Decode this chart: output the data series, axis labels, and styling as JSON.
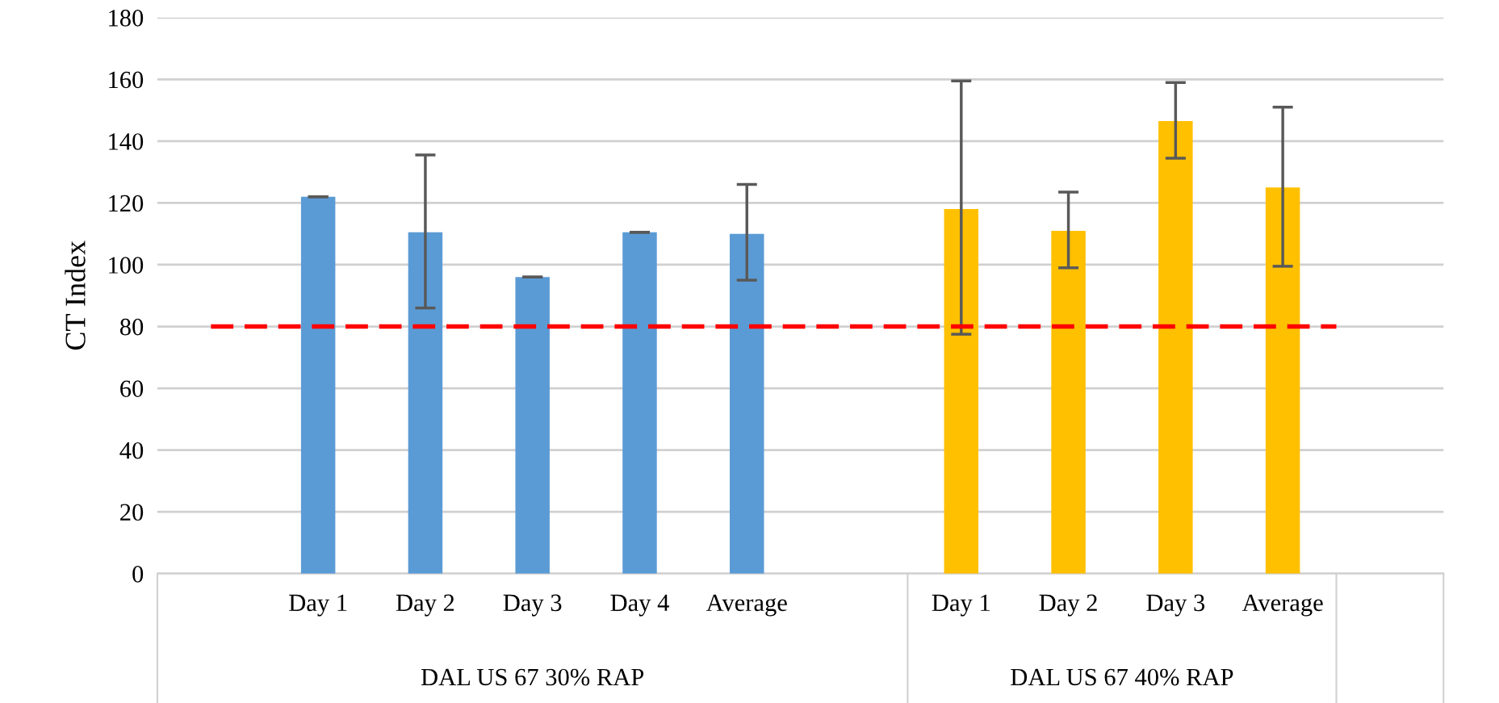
{
  "chart_data": {
    "type": "bar",
    "ylabel": "CT Index",
    "categories": [
      null,
      "Day 1",
      "Day 2",
      "Day 3",
      "Day 4",
      "Average",
      null,
      "Day 1",
      "Day 2",
      "Day 3",
      "Average",
      null
    ],
    "values": [
      null,
      122,
      110.5,
      96,
      110.5,
      110,
      null,
      118,
      111,
      146.5,
      125,
      null
    ],
    "colors": [
      null,
      "#5b9bd5",
      "#5b9bd5",
      "#5b9bd5",
      "#5b9bd5",
      "#5b9bd5",
      null,
      "#ffc000",
      "#ffc000",
      "#ffc000",
      "#ffc000",
      null
    ],
    "errors": [
      null,
      0,
      [
        86,
        135.5
      ],
      0,
      0,
      [
        95,
        126
      ],
      null,
      [
        77.5,
        159.5
      ],
      [
        99,
        123.5
      ],
      [
        134.5,
        159
      ],
      [
        99.5,
        151
      ],
      null
    ],
    "ylim": [
      0,
      180
    ],
    "yticks": [
      0,
      20,
      40,
      60,
      80,
      100,
      120,
      140,
      160,
      180
    ],
    "grid": "y",
    "ref_lines": [
      {
        "axis": "y",
        "value": 80,
        "color": "#ff0000",
        "line_style": "dashed"
      }
    ],
    "annotations": [
      "DAL US 67 30% RAP",
      "DAL US 67 40% RAP"
    ]
  }
}
